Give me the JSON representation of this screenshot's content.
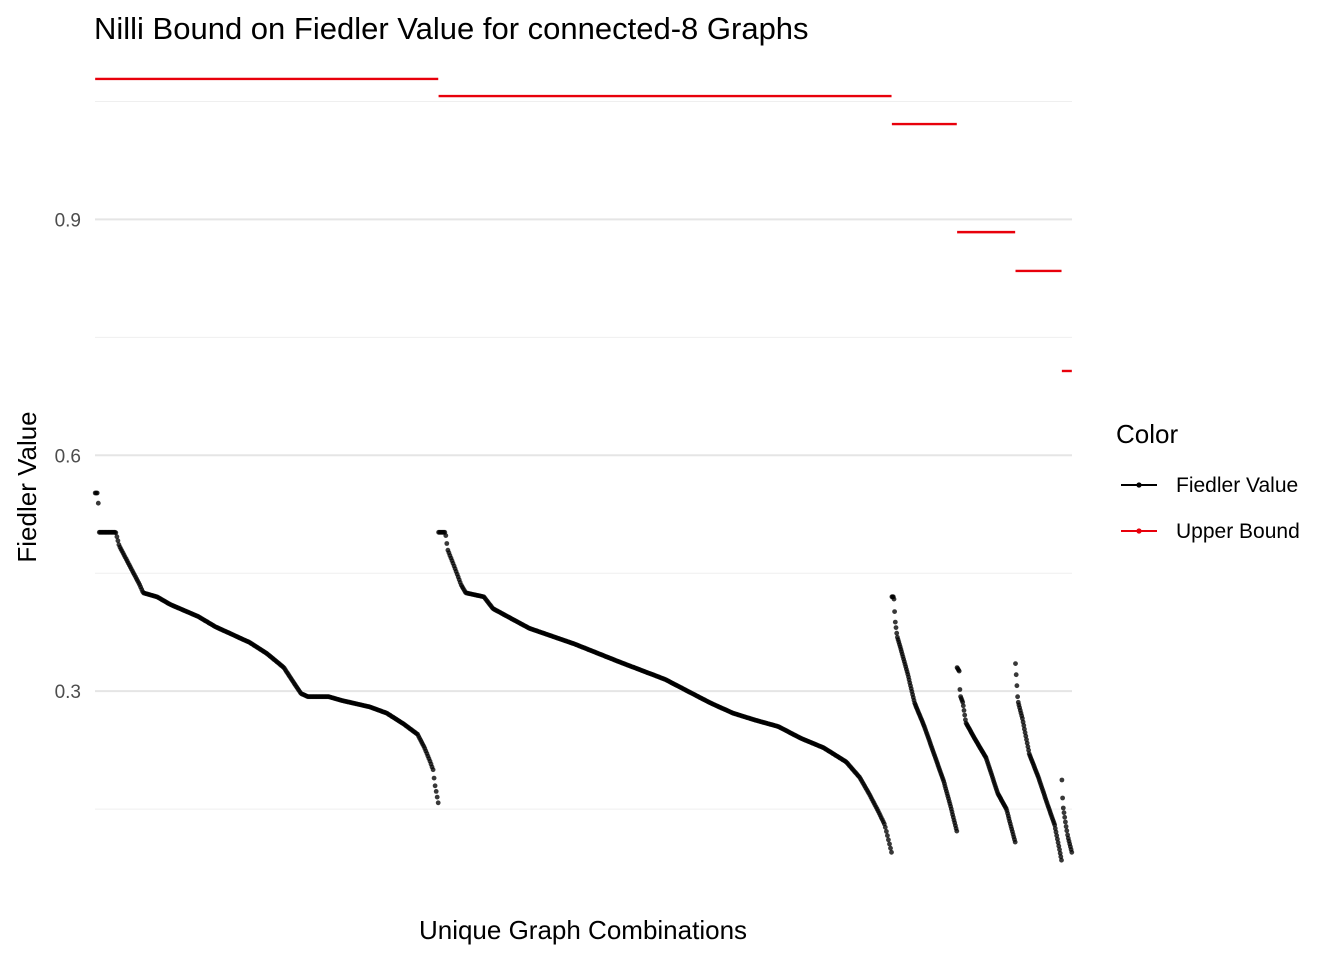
{
  "chart_data": {
    "type": "scatter",
    "title": "Nilli Bound on Fiedler Value for connected-8 Graphs",
    "xlabel": "Unique Graph Combinations",
    "ylabel": "Fiedler Value",
    "ylim": [
      0.07,
      1.09
    ],
    "yticks": [
      0.3,
      0.6,
      0.9
    ],
    "ytick_labels": [
      "0.3",
      "0.6",
      "0.9"
    ],
    "grid": true,
    "legend": {
      "title": "Color",
      "position": "right",
      "entries": [
        {
          "label": "Fiedler Value",
          "color": "#000000"
        },
        {
          "label": "Upper Bound",
          "color": "#e8000b"
        }
      ]
    },
    "colors": {
      "fiedler": "#000000",
      "bound": "#e8000b"
    },
    "groups": [
      {
        "size": 1000,
        "upper_bound": 1.0786,
        "fiedler_curve": [
          [
            0,
            0.552
          ],
          [
            0.008,
            0.552
          ],
          [
            0.012,
            0.502
          ],
          [
            0.06,
            0.502
          ],
          [
            0.07,
            0.485
          ],
          [
            0.1,
            0.46
          ],
          [
            0.13,
            0.435
          ],
          [
            0.14,
            0.425
          ],
          [
            0.18,
            0.42
          ],
          [
            0.22,
            0.41
          ],
          [
            0.3,
            0.395
          ],
          [
            0.35,
            0.382
          ],
          [
            0.45,
            0.362
          ],
          [
            0.5,
            0.348
          ],
          [
            0.55,
            0.33
          ],
          [
            0.58,
            0.31
          ],
          [
            0.6,
            0.297
          ],
          [
            0.62,
            0.293
          ],
          [
            0.68,
            0.293
          ],
          [
            0.72,
            0.288
          ],
          [
            0.8,
            0.28
          ],
          [
            0.85,
            0.272
          ],
          [
            0.9,
            0.258
          ],
          [
            0.94,
            0.245
          ],
          [
            0.96,
            0.228
          ],
          [
            0.975,
            0.212
          ],
          [
            0.985,
            0.2
          ],
          [
            0.99,
            0.182
          ],
          [
            1,
            0.158
          ]
        ]
      },
      {
        "size": 1320,
        "upper_bound": 1.0568,
        "fiedler_curve": [
          [
            0,
            0.502
          ],
          [
            0.015,
            0.502
          ],
          [
            0.02,
            0.48
          ],
          [
            0.035,
            0.458
          ],
          [
            0.05,
            0.435
          ],
          [
            0.06,
            0.425
          ],
          [
            0.1,
            0.42
          ],
          [
            0.12,
            0.405
          ],
          [
            0.2,
            0.38
          ],
          [
            0.3,
            0.36
          ],
          [
            0.4,
            0.337
          ],
          [
            0.5,
            0.315
          ],
          [
            0.55,
            0.3
          ],
          [
            0.6,
            0.285
          ],
          [
            0.65,
            0.272
          ],
          [
            0.7,
            0.263
          ],
          [
            0.75,
            0.255
          ],
          [
            0.8,
            0.24
          ],
          [
            0.85,
            0.228
          ],
          [
            0.9,
            0.21
          ],
          [
            0.93,
            0.19
          ],
          [
            0.95,
            0.17
          ],
          [
            0.97,
            0.148
          ],
          [
            0.985,
            0.13
          ],
          [
            1,
            0.095
          ]
        ]
      },
      {
        "size": 190,
        "upper_bound": 1.0212,
        "fiedler_curve": [
          [
            0,
            0.42
          ],
          [
            0.03,
            0.42
          ],
          [
            0.05,
            0.39
          ],
          [
            0.08,
            0.37
          ],
          [
            0.15,
            0.35
          ],
          [
            0.25,
            0.32
          ],
          [
            0.35,
            0.285
          ],
          [
            0.5,
            0.255
          ],
          [
            0.65,
            0.22
          ],
          [
            0.8,
            0.185
          ],
          [
            0.9,
            0.155
          ],
          [
            1,
            0.122
          ]
        ]
      },
      {
        "size": 170,
        "upper_bound": 0.8838,
        "fiedler_curve": [
          [
            0,
            0.33
          ],
          [
            0.04,
            0.325
          ],
          [
            0.05,
            0.295
          ],
          [
            0.1,
            0.285
          ],
          [
            0.15,
            0.26
          ],
          [
            0.3,
            0.24
          ],
          [
            0.5,
            0.215
          ],
          [
            0.7,
            0.17
          ],
          [
            0.85,
            0.15
          ],
          [
            1,
            0.108
          ]
        ]
      },
      {
        "size": 135,
        "upper_bound": 0.8344,
        "fiedler_curve": [
          [
            0,
            0.335
          ],
          [
            0.05,
            0.288
          ],
          [
            0.15,
            0.265
          ],
          [
            0.3,
            0.22
          ],
          [
            0.5,
            0.19
          ],
          [
            0.7,
            0.155
          ],
          [
            0.85,
            0.13
          ],
          [
            1,
            0.085
          ]
        ]
      },
      {
        "size": 30,
        "upper_bound": 0.7072,
        "fiedler_curve": [
          [
            0,
            0.187
          ],
          [
            0.1,
            0.155
          ],
          [
            0.4,
            0.13
          ],
          [
            0.6,
            0.115
          ],
          [
            0.8,
            0.105
          ],
          [
            1,
            0.095
          ]
        ]
      }
    ]
  }
}
